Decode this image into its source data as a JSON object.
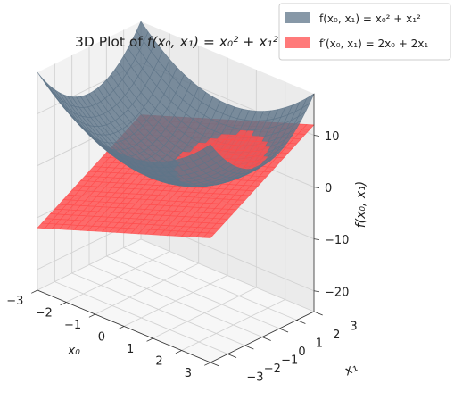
{
  "chart_data": {
    "type": "surface3d",
    "title": "3D Plot of f(x₀, x₁) = x₀² + x₁²",
    "title_parts": {
      "lead": "3D Plot of ",
      "expr": "f(x₀, x₁) = x₀² + x₁²"
    },
    "xlabel": "x₀",
    "ylabel": "x₁",
    "zlabel": "f(x₀, x₁)",
    "xlim": [
      -3,
      3
    ],
    "ylim": [
      -3,
      3
    ],
    "zlim": [
      -24,
      18
    ],
    "xticks": [
      "−3",
      "−2",
      "−1",
      "0",
      "1",
      "2",
      "3"
    ],
    "yticks": [
      "−3",
      "−2",
      "−1",
      "0",
      "1",
      "2",
      "3"
    ],
    "zticks": [
      "−20",
      "−10",
      "0",
      "10"
    ],
    "grid": true,
    "series": [
      {
        "name": "f(x₀, x₁) = x₀² + x₁²",
        "function": "x0^2 + x1^2",
        "color": "#5f7589",
        "alpha": 0.75,
        "corner_values": [
          {
            "x0": -3,
            "x1": -3,
            "z": 18
          },
          {
            "x0": 3,
            "x1": -3,
            "z": 18
          },
          {
            "x0": 3,
            "x1": 3,
            "z": 18
          },
          {
            "x0": -3,
            "x1": 3,
            "z": 18
          }
        ],
        "min_value": {
          "x0": 0,
          "x1": 0,
          "z": 0
        }
      },
      {
        "name": "f′(x₀, x₁) = 2x₀ + 2x₁",
        "function": "2*x0 + 2*x1",
        "color": "#ff4d4d",
        "alpha": 0.75,
        "corner_values": [
          {
            "x0": -3,
            "x1": -3,
            "z": -12
          },
          {
            "x0": 3,
            "x1": -3,
            "z": 0
          },
          {
            "x0": 3,
            "x1": 3,
            "z": 12
          },
          {
            "x0": -3,
            "x1": 3,
            "z": 0
          }
        ]
      }
    ],
    "legend_position": "top-right",
    "view": "elev 30, azim -60"
  }
}
